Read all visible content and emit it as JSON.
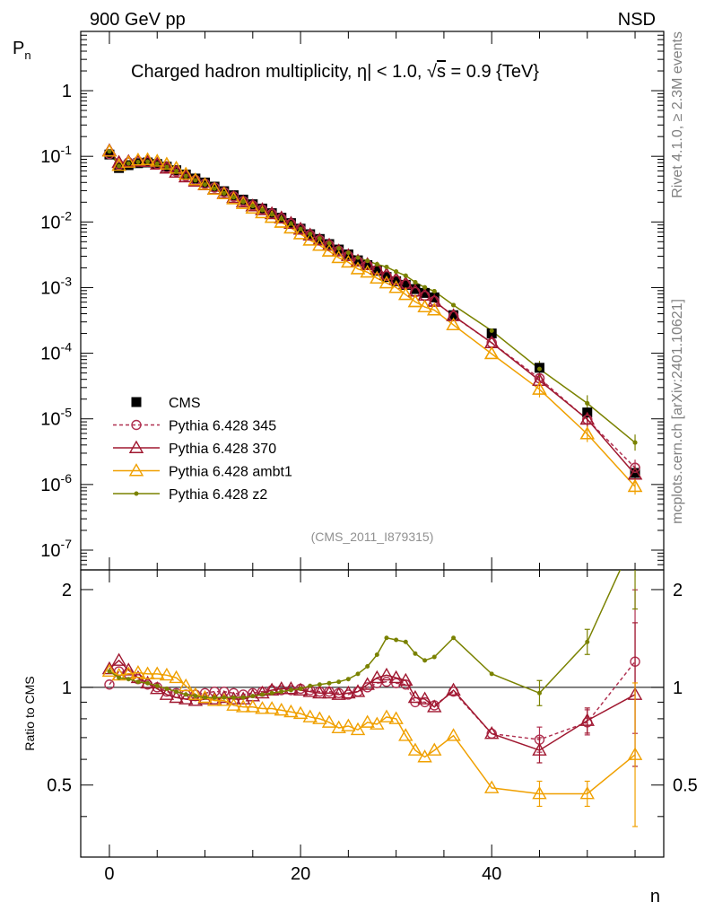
{
  "chart_data": {
    "type": "line",
    "title": "Charged hadron multiplicity, |η| < 1.0, √s = 0.9 {TeV}",
    "title_parts": {
      "a": "Charged hadron multiplicity, ",
      "b": "η",
      "c": "| < 1.0, ",
      "d": "√",
      "e": "s",
      "f": " = 0.9 {TeV}"
    },
    "header_left": "900 GeV pp",
    "header_right": "NSD",
    "side_label_top": "Rivet 4.1.0, ≥ 2.3M events",
    "side_label_bottom": "mcplots.cern.ch [arXiv:2401.10621]",
    "analysis_ref": "(CMS_2011_I879315)",
    "xlabel": "n",
    "ylabel": "P",
    "ylabel_sub": "n",
    "ratio_ylabel": "Ratio to CMS",
    "xlim": [
      -3,
      58
    ],
    "ylim": [
      5e-08,
      8
    ],
    "ratio_ylim": [
      0.3,
      2.3
    ],
    "x_ticks": [
      "0",
      "20",
      "40"
    ],
    "y_ticks": [
      {
        "b": "10",
        "e": "-7"
      },
      {
        "b": "10",
        "e": "-6"
      },
      {
        "b": "10",
        "e": "-5"
      },
      {
        "b": "10",
        "e": "-4"
      },
      {
        "b": "10",
        "e": "-3"
      },
      {
        "b": "10",
        "e": "-2"
      },
      {
        "b": "10",
        "e": "-1"
      },
      {
        "b": "1",
        "e": ""
      }
    ],
    "ratio_ticks": [
      "0.5",
      "1",
      "2"
    ],
    "legend_position": "lower-left",
    "cms": {
      "name": "CMS",
      "x": [
        0,
        1,
        2,
        3,
        4,
        5,
        6,
        7,
        8,
        9,
        10,
        11,
        12,
        13,
        14,
        15,
        16,
        17,
        18,
        19,
        20,
        21,
        22,
        23,
        24,
        25,
        26,
        27,
        28,
        29,
        30,
        31,
        32,
        33,
        34,
        36,
        40,
        45,
        50,
        55
      ],
      "y": [
        0.1065,
        0.0664,
        0.0734,
        0.0787,
        0.0806,
        0.0764,
        0.0695,
        0.0614,
        0.0528,
        0.0459,
        0.0399,
        0.0345,
        0.0294,
        0.0255,
        0.0219,
        0.0186,
        0.016,
        0.0136,
        0.0116,
        0.0096,
        0.0079,
        0.0065,
        0.0055,
        0.0046,
        0.0038,
        0.0032,
        0.0026,
        0.0022,
        0.0018,
        0.00145,
        0.00125,
        0.0011,
        0.00095,
        0.00083,
        0.00071,
        0.00038,
        0.0002,
        6e-05,
        1.25e-05,
        1.5e-06
      ]
    },
    "series": [
      {
        "name": "Pythia 6.428 345",
        "color": "#b03050",
        "marker": "circle",
        "dashed": true,
        "ratio": [
          1.02,
          1.12,
          1.1,
          1.06,
          1.02,
          1.0,
          0.97,
          0.96,
          0.95,
          0.95,
          0.96,
          0.97,
          0.97,
          0.96,
          0.95,
          0.96,
          0.97,
          0.98,
          0.98,
          0.98,
          0.99,
          0.98,
          0.97,
          0.97,
          0.96,
          0.95,
          0.97,
          1.0,
          1.03,
          1.04,
          1.03,
          1.02,
          0.9,
          0.9,
          0.88,
          0.97,
          0.72,
          0.69,
          0.78,
          1.2
        ]
      },
      {
        "name": "Pythia 6.428 370",
        "color": "#a01830",
        "marker": "triangle",
        "dashed": false,
        "ratio": [
          1.14,
          1.21,
          1.13,
          1.07,
          1.03,
          0.99,
          0.95,
          0.93,
          0.92,
          0.91,
          0.92,
          0.92,
          0.93,
          0.92,
          0.92,
          0.94,
          0.96,
          0.98,
          0.99,
          0.99,
          0.98,
          0.97,
          0.96,
          0.96,
          0.95,
          0.96,
          0.97,
          1.02,
          1.07,
          1.09,
          1.07,
          1.05,
          0.93,
          0.92,
          0.87,
          0.98,
          0.72,
          0.64,
          0.79,
          0.95
        ]
      },
      {
        "name": "Pythia 6.428 ambt1",
        "color": "#f0a000",
        "marker": "triangle",
        "dashed": false,
        "ratio": [
          1.12,
          1.09,
          1.1,
          1.11,
          1.1,
          1.1,
          1.09,
          1.07,
          1.01,
          0.95,
          0.93,
          0.91,
          0.91,
          0.88,
          0.87,
          0.87,
          0.86,
          0.86,
          0.85,
          0.84,
          0.83,
          0.81,
          0.8,
          0.78,
          0.75,
          0.76,
          0.74,
          0.78,
          0.77,
          0.81,
          0.8,
          0.71,
          0.64,
          0.61,
          0.64,
          0.71,
          0.49,
          0.47,
          0.47,
          0.62
        ]
      },
      {
        "name": "Pythia 6.428 z2",
        "color": "#7a8200",
        "marker": "dot",
        "dashed": false,
        "ratio": [
          1.12,
          1.07,
          1.06,
          1.04,
          1.03,
          1.01,
          0.99,
          0.97,
          0.95,
          0.94,
          0.93,
          0.93,
          0.93,
          0.93,
          0.93,
          0.94,
          0.95,
          0.96,
          0.97,
          0.98,
          0.99,
          1.01,
          1.02,
          1.03,
          1.04,
          1.06,
          1.1,
          1.16,
          1.26,
          1.42,
          1.4,
          1.38,
          1.27,
          1.21,
          1.24,
          1.42,
          1.1,
          0.96,
          1.38,
          2.9
        ]
      }
    ]
  }
}
